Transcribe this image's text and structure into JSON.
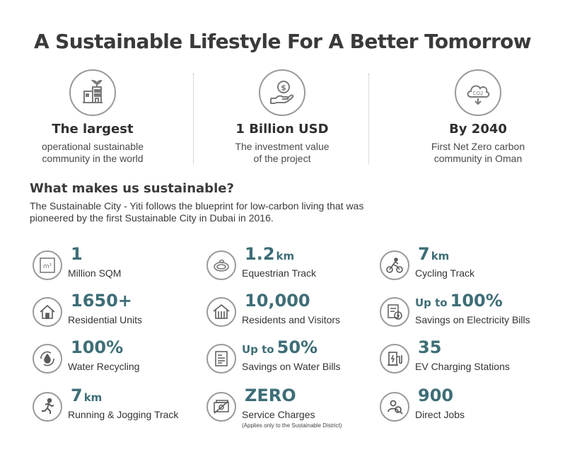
{
  "title": "A Sustainable Lifestyle For A Better Tomorrow",
  "colors": {
    "accent": "#3e6e77",
    "icon_gray": "#8a8a8a",
    "text": "#333333"
  },
  "highlights": [
    {
      "icon": "building-plant-icon",
      "title": "The largest",
      "desc_line1": "operational sustainable",
      "desc_line2": "community in the world"
    },
    {
      "icon": "dollar-hand-icon",
      "title": "1 Billion USD",
      "desc_line1": "The investment value",
      "desc_line2": "of the project"
    },
    {
      "icon": "co2-cloud-icon",
      "title": "By 2040",
      "desc_line1": "First Net Zero carbon",
      "desc_line2": "community in Oman"
    }
  ],
  "section": {
    "heading": "What makes us sustainable?",
    "intro_line1": "The Sustainable City - Yiti follows the blueprint for low-carbon living that was",
    "intro_line2": "pioneered by the first Sustainable City in Dubai in 2016."
  },
  "stats": [
    {
      "icon": "area-sqm-icon",
      "value": "1",
      "unit": "",
      "prefix": "",
      "label": "Million SQM",
      "note": ""
    },
    {
      "icon": "track-icon",
      "value": "1.2",
      "unit": "km",
      "prefix": "",
      "label": "Equestrian Track",
      "note": ""
    },
    {
      "icon": "cycling-icon",
      "value": "7",
      "unit": "km",
      "prefix": "",
      "label": "Cycling Track",
      "note": ""
    },
    {
      "icon": "house-icon",
      "value": "1650+",
      "unit": "",
      "prefix": "",
      "label": "Residential Units",
      "note": ""
    },
    {
      "icon": "community-house-icon",
      "value": "10,000",
      "unit": "",
      "prefix": "",
      "label": "Residents and Visitors",
      "note": ""
    },
    {
      "icon": "electricity-bill-icon",
      "value": "100%",
      "unit": "",
      "prefix": "Up to",
      "label": "Savings on Electricity Bills",
      "note": ""
    },
    {
      "icon": "water-recycling-icon",
      "value": "100%",
      "unit": "",
      "prefix": "",
      "label": "Water Recycling",
      "note": ""
    },
    {
      "icon": "water-bill-icon",
      "value": "50%",
      "unit": "",
      "prefix": "Up to",
      "label": "Savings on Water Bills",
      "note": ""
    },
    {
      "icon": "ev-charging-icon",
      "value": "35",
      "unit": "",
      "prefix": "",
      "label": "EV Charging Stations",
      "note": ""
    },
    {
      "icon": "runner-icon",
      "value": "7",
      "unit": "km",
      "prefix": "",
      "label": "Running & Jogging Track",
      "note": ""
    },
    {
      "icon": "no-charges-icon",
      "value": "ZERO",
      "unit": "",
      "prefix": "",
      "label": "Service Charges",
      "note": "(Applies only to the Sustainable District)"
    },
    {
      "icon": "job-search-icon",
      "value": "900",
      "unit": "",
      "prefix": "",
      "label": "Direct Jobs",
      "note": ""
    }
  ]
}
